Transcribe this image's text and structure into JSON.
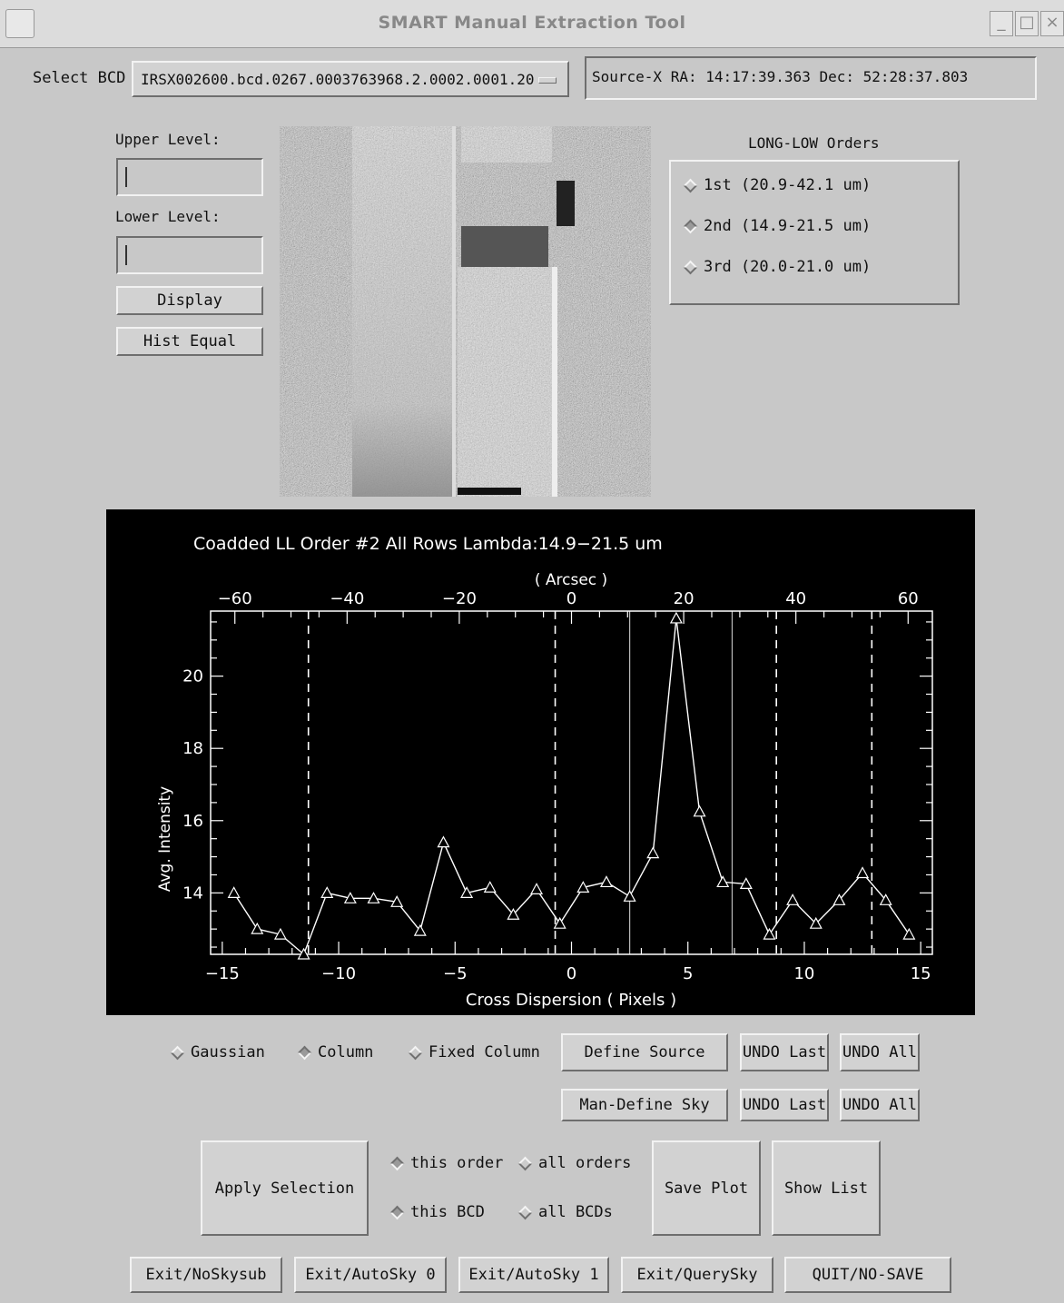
{
  "window": {
    "title": "SMART Manual Extraction Tool"
  },
  "select_bcd": {
    "label": "Select BCD",
    "value": "IRSX002600.bcd.0267.0003763968.2.0002.0001.20",
    "dropdown_glyph": "—"
  },
  "source_info": {
    "text": "Source-X     RA: 14:17:39.363    Dec: 52:28:37.803"
  },
  "levels": {
    "upper_label": "Upper Level:",
    "lower_label": "Lower Level:",
    "upper_value": "",
    "lower_value": "",
    "display_button": "Display",
    "hist_equal_button": "Hist Equal"
  },
  "orders": {
    "title": "LONG-LOW Orders",
    "items": [
      {
        "label": "1st (20.9-42.1 um)",
        "selected": false
      },
      {
        "label": "2nd (14.9-21.5 um)",
        "selected": true
      },
      {
        "label": "3rd (20.0-21.0 um)",
        "selected": false
      }
    ]
  },
  "chart_data": {
    "type": "line",
    "title": "Coadded LL Order #2   All Rows     Lambda:14.9−21.5 um",
    "xlabel": "Cross Dispersion ( Pixels )",
    "ylabel": "Avg. Intensity",
    "top_axis_label": "( Arcsec )",
    "xlim": [
      -15.5,
      15.5
    ],
    "ylim": [
      12.3,
      21.8
    ],
    "x_ticks": [
      -15,
      -10,
      -5,
      0,
      5,
      10,
      15
    ],
    "y_ticks": [
      14,
      16,
      18,
      20
    ],
    "top_ticks": [
      -60,
      -40,
      -20,
      0,
      20,
      40,
      60
    ],
    "top_axis_scale": 4.15,
    "marker": "triangle",
    "x": [
      -14.5,
      -13.5,
      -12.5,
      -11.5,
      -10.5,
      -9.5,
      -8.5,
      -7.5,
      -6.5,
      -5.5,
      -4.5,
      -3.5,
      -2.5,
      -1.5,
      -0.5,
      0.5,
      1.5,
      2.5,
      3.5,
      4.5,
      5.5,
      6.5,
      7.5,
      8.5,
      9.5,
      10.5,
      11.5,
      12.5,
      13.5,
      14.5
    ],
    "y": [
      14.0,
      13.0,
      12.85,
      12.3,
      14.0,
      13.85,
      13.85,
      13.75,
      12.95,
      15.4,
      14.0,
      14.15,
      13.4,
      14.1,
      13.15,
      14.15,
      14.3,
      13.9,
      15.1,
      21.6,
      16.25,
      14.3,
      14.25,
      12.85,
      13.8,
      13.15,
      13.8,
      14.55,
      13.8,
      12.85
    ],
    "dashed_lines": [
      -11.3,
      -0.7,
      8.8,
      12.9
    ],
    "solid_lines": [
      2.5,
      6.9
    ],
    "grid": false
  },
  "controls": {
    "profile_options": [
      {
        "label": "Gaussian",
        "selected": false
      },
      {
        "label": "Column",
        "selected": true
      },
      {
        "label": "Fixed Column",
        "selected": false
      }
    ],
    "define_source": "Define Source",
    "man_define_sky": "Man-Define Sky",
    "undo_last": "UNDO Last",
    "undo_all": "UNDO All",
    "apply_selection": "Apply Selection",
    "scope_order": [
      {
        "label": "this order",
        "selected": true
      },
      {
        "label": "all orders",
        "selected": false
      }
    ],
    "scope_bcd": [
      {
        "label": "this BCD",
        "selected": true
      },
      {
        "label": "all BCDs",
        "selected": false
      }
    ],
    "save_plot": "Save Plot",
    "show_list": "Show List"
  },
  "exit_buttons": [
    "Exit/NoSkysub",
    "Exit/AutoSky 0",
    "Exit/AutoSky 1",
    "Exit/QuerySky",
    "QUIT/NO-SAVE"
  ]
}
